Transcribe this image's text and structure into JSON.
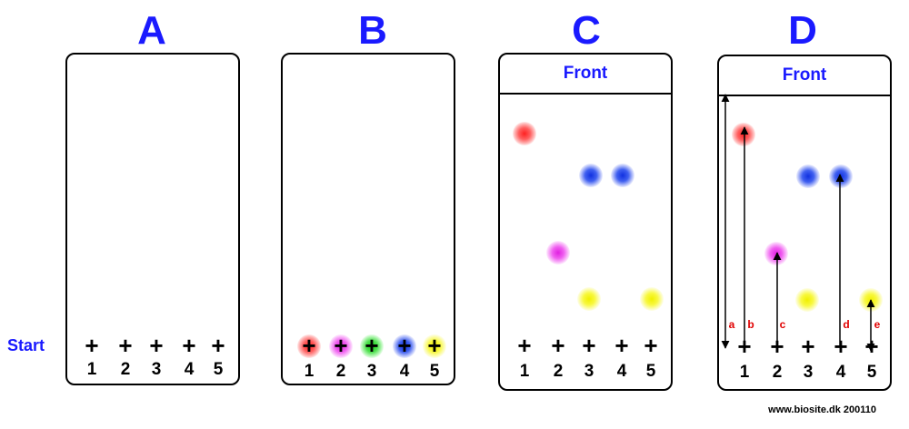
{
  "panels": [
    {
      "title": "A",
      "front": null,
      "lanes": [
        "1",
        "2",
        "3",
        "4",
        "5"
      ]
    },
    {
      "title": "B",
      "front": null,
      "lanes": [
        "1",
        "2",
        "3",
        "4",
        "5"
      ]
    },
    {
      "title": "C",
      "front": "Front",
      "lanes": [
        "1",
        "2",
        "3",
        "4",
        "5"
      ]
    },
    {
      "title": "D",
      "front": "Front",
      "lanes": [
        "1",
        "2",
        "3",
        "4",
        "5"
      ]
    }
  ],
  "start_label": "Start",
  "start_marker": "+",
  "spot_colors": {
    "red": "#ff2020",
    "magenta": "#e020e0",
    "green": "#10d010",
    "blue": "#1030e0",
    "yellow": "#f0f000"
  },
  "measurements": [
    "a",
    "b",
    "c",
    "d",
    "e"
  ],
  "footer": "www.biosite.dk 200110"
}
